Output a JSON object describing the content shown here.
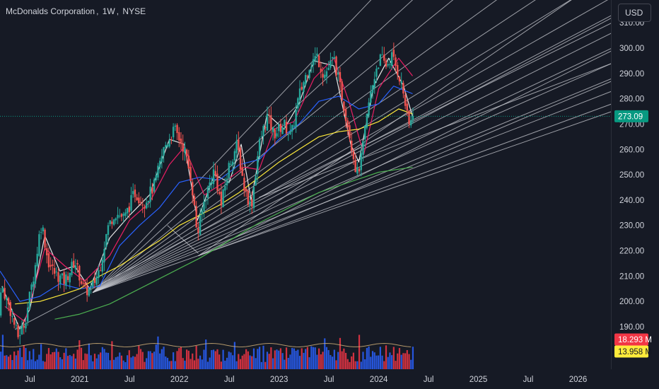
{
  "header": {
    "symbol": "McDonalds Corporation",
    "interval": "1W",
    "exchange": "NYSE",
    "currency_label": "USD"
  },
  "colors": {
    "background": "#161a25",
    "up": "#26a69a",
    "down": "#ef5350",
    "vol_up": "#2962ff",
    "vol_down": "#f23645",
    "axis_text": "#d1d4dc",
    "current_price_badge": "#089981",
    "volume_badge": "#f23645",
    "volume_ma_badge": "#ffeb3b",
    "ma_white": "#e6e6e6",
    "ma_red": "#e91e63",
    "ma_blue": "#2962ff",
    "ma_yellow": "#ffeb3b",
    "ma_green": "#4caf50"
  },
  "chart_data": {
    "type": "candlestick",
    "title": "McDonalds Corporation, 1W, NYSE",
    "y_scale": "linear",
    "ylim": [
      184,
      318
    ],
    "y_ticks": [
      "310.00",
      "300.00",
      "290.00",
      "280.00",
      "270.00",
      "260.00",
      "250.00",
      "240.00",
      "230.00",
      "220.00",
      "210.00",
      "200.00",
      "190.00"
    ],
    "y_tick_values": [
      310,
      300,
      290,
      280,
      270,
      260,
      250,
      240,
      230,
      220,
      210,
      200,
      190
    ],
    "x_ticks": [
      "Jul",
      "2021",
      "Jul",
      "2022",
      "Jul",
      "2023",
      "Jul",
      "2024",
      "Jul",
      "2025",
      "Jul",
      "2026"
    ],
    "x_tick_years": [
      2020.5,
      2021.0,
      2021.5,
      2022.0,
      2022.5,
      2023.0,
      2023.5,
      2024.0,
      2024.5,
      2025.0,
      2025.5,
      2026.0
    ],
    "x_range": [
      2020.2,
      2026.33
    ],
    "current_price": "273.09",
    "current_price_value": 273.09,
    "volume_label": "18.293 M",
    "volume_ma_label": "13.958 M",
    "price_path": [
      [
        2020.17,
        192
      ],
      [
        2020.22,
        206
      ],
      [
        2020.3,
        197
      ],
      [
        2020.38,
        186
      ],
      [
        2020.45,
        192
      ],
      [
        2020.55,
        213
      ],
      [
        2020.6,
        228
      ],
      [
        2020.62,
        231
      ],
      [
        2020.68,
        216
      ],
      [
        2020.75,
        211
      ],
      [
        2020.85,
        208
      ],
      [
        2020.95,
        216
      ],
      [
        2021.05,
        204
      ],
      [
        2021.12,
        205
      ],
      [
        2021.2,
        213
      ],
      [
        2021.28,
        229
      ],
      [
        2021.35,
        235
      ],
      [
        2021.45,
        233
      ],
      [
        2021.55,
        243
      ],
      [
        2021.65,
        239
      ],
      [
        2021.75,
        246
      ],
      [
        2021.85,
        261
      ],
      [
        2021.95,
        268
      ],
      [
        2022.05,
        260
      ],
      [
        2022.12,
        248
      ],
      [
        2022.18,
        226
      ],
      [
        2022.25,
        240
      ],
      [
        2022.35,
        252
      ],
      [
        2022.42,
        238
      ],
      [
        2022.5,
        254
      ],
      [
        2022.58,
        262
      ],
      [
        2022.65,
        245
      ],
      [
        2022.72,
        237
      ],
      [
        2022.8,
        262
      ],
      [
        2022.88,
        273
      ],
      [
        2022.95,
        266
      ],
      [
        2023.05,
        270
      ],
      [
        2023.12,
        265
      ],
      [
        2023.2,
        281
      ],
      [
        2023.3,
        293
      ],
      [
        2023.38,
        297
      ],
      [
        2023.45,
        289
      ],
      [
        2023.55,
        296
      ],
      [
        2023.62,
        283
      ],
      [
        2023.7,
        268
      ],
      [
        2023.78,
        250
      ],
      [
        2023.82,
        255
      ],
      [
        2023.9,
        278
      ],
      [
        2023.98,
        293
      ],
      [
        2024.02,
        296
      ],
      [
        2024.08,
        293
      ],
      [
        2024.13,
        297
      ],
      [
        2024.2,
        290
      ],
      [
        2024.25,
        282
      ],
      [
        2024.3,
        269
      ],
      [
        2024.34,
        273.09
      ]
    ],
    "series": [
      {
        "name": "",
        "color": "#e6e6e6",
        "points": [
          [
            2020.22,
            206
          ],
          [
            2020.4,
            189
          ],
          [
            2020.5,
            197
          ],
          [
            2020.65,
            226
          ],
          [
            2020.8,
            212
          ],
          [
            2020.95,
            214
          ],
          [
            2021.1,
            205
          ],
          [
            2021.3,
            225
          ],
          [
            2021.5,
            234
          ],
          [
            2021.7,
            242
          ],
          [
            2021.9,
            264
          ],
          [
            2022.05,
            262
          ],
          [
            2022.18,
            232
          ],
          [
            2022.35,
            250
          ],
          [
            2022.5,
            247
          ],
          [
            2022.62,
            262
          ],
          [
            2022.72,
            240
          ],
          [
            2022.88,
            274
          ],
          [
            2023.05,
            268
          ],
          [
            2023.2,
            278
          ],
          [
            2023.35,
            295
          ],
          [
            2023.55,
            293
          ],
          [
            2023.72,
            262
          ],
          [
            2023.8,
            255
          ],
          [
            2023.95,
            285
          ],
          [
            2024.1,
            296
          ],
          [
            2024.25,
            285
          ],
          [
            2024.34,
            273
          ]
        ]
      },
      {
        "name": "",
        "color": "#e91e63",
        "points": [
          [
            2020.25,
            198
          ],
          [
            2020.45,
            192
          ],
          [
            2020.65,
            221
          ],
          [
            2020.85,
            214
          ],
          [
            2021.05,
            208
          ],
          [
            2021.3,
            218
          ],
          [
            2021.5,
            232
          ],
          [
            2021.7,
            239
          ],
          [
            2021.9,
            254
          ],
          [
            2022.05,
            261
          ],
          [
            2022.25,
            242
          ],
          [
            2022.45,
            247
          ],
          [
            2022.65,
            253
          ],
          [
            2022.8,
            252
          ],
          [
            2022.95,
            268
          ],
          [
            2023.15,
            271
          ],
          [
            2023.35,
            288
          ],
          [
            2023.55,
            296
          ],
          [
            2023.7,
            279
          ],
          [
            2023.85,
            258
          ],
          [
            2024.0,
            284
          ],
          [
            2024.2,
            296
          ],
          [
            2024.34,
            289
          ]
        ]
      },
      {
        "name": "",
        "color": "#2962ff",
        "points": [
          [
            2020.2,
            212
          ],
          [
            2020.4,
            200
          ],
          [
            2020.6,
            202
          ],
          [
            2020.8,
            207
          ],
          [
            2021.0,
            205
          ],
          [
            2021.2,
            206
          ],
          [
            2021.4,
            222
          ],
          [
            2021.6,
            230
          ],
          [
            2021.8,
            237
          ],
          [
            2022.0,
            247
          ],
          [
            2022.2,
            249
          ],
          [
            2022.4,
            248
          ],
          [
            2022.6,
            254
          ],
          [
            2022.8,
            256
          ],
          [
            2023.0,
            264
          ],
          [
            2023.2,
            270
          ],
          [
            2023.4,
            279
          ],
          [
            2023.6,
            281
          ],
          [
            2023.8,
            276
          ],
          [
            2024.0,
            278
          ],
          [
            2024.15,
            285
          ],
          [
            2024.34,
            282
          ]
        ]
      },
      {
        "name": "",
        "color": "#ffeb3b",
        "points": [
          [
            2020.35,
            199
          ],
          [
            2020.6,
            200
          ],
          [
            2020.85,
            203
          ],
          [
            2021.0,
            205
          ],
          [
            2021.2,
            210
          ],
          [
            2021.4,
            214
          ],
          [
            2021.6,
            219
          ],
          [
            2021.8,
            224
          ],
          [
            2022.0,
            230
          ],
          [
            2022.2,
            234
          ],
          [
            2022.4,
            238
          ],
          [
            2022.6,
            243
          ],
          [
            2022.8,
            249
          ],
          [
            2023.0,
            255
          ],
          [
            2023.2,
            260
          ],
          [
            2023.4,
            265
          ],
          [
            2023.6,
            267
          ],
          [
            2023.8,
            268
          ],
          [
            2024.0,
            271
          ],
          [
            2024.2,
            276
          ],
          [
            2024.34,
            274
          ]
        ]
      },
      {
        "name": "",
        "color": "#4caf50",
        "points": [
          [
            2020.75,
            193
          ],
          [
            2021.0,
            195
          ],
          [
            2021.3,
            199
          ],
          [
            2021.6,
            205
          ],
          [
            2021.9,
            211
          ],
          [
            2022.2,
            217
          ],
          [
            2022.5,
            224
          ],
          [
            2022.8,
            231
          ],
          [
            2023.1,
            237
          ],
          [
            2023.4,
            243
          ],
          [
            2023.7,
            247
          ],
          [
            2024.0,
            251
          ],
          [
            2024.34,
            253
          ]
        ]
      }
    ],
    "fan_lines": [
      {
        "from": [
          2021.13,
          203.5
        ],
        "to": [
          2026.34,
          419
        ],
        "color": "#c9cbd1"
      },
      {
        "from": [
          2021.13,
          203.5
        ],
        "to": [
          2026.34,
          391
        ],
        "color": "#c9cbd1"
      },
      {
        "from": [
          2021.13,
          203.5
        ],
        "to": [
          2026.34,
          370
        ],
        "color": "#c9cbd1"
      },
      {
        "from": [
          2021.13,
          203.5
        ],
        "to": [
          2026.34,
          352
        ],
        "color": "#c9cbd1"
      },
      {
        "from": [
          2021.13,
          203.5
        ],
        "to": [
          2026.34,
          339
        ],
        "color": "#c9cbd1"
      },
      {
        "from": [
          2021.13,
          203.5
        ],
        "to": [
          2026.34,
          329
        ],
        "color": "#c9cbd1"
      },
      {
        "from": [
          2021.13,
          203.5
        ],
        "to": [
          2026.34,
          320
        ],
        "color": "#c9cbd1"
      },
      {
        "from": [
          2021.13,
          203.5
        ],
        "to": [
          2026.34,
          312
        ],
        "color": "#c9cbd1"
      },
      {
        "from": [
          2021.13,
          203.5
        ],
        "to": [
          2026.34,
          306
        ],
        "color": "#c9cbd1"
      },
      {
        "from": [
          2021.13,
          203.5
        ],
        "to": [
          2026.34,
          300
        ],
        "color": "#c9cbd1"
      },
      {
        "from": [
          2021.13,
          203.5
        ],
        "to": [
          2026.34,
          294
        ],
        "color": "#c9cbd1"
      },
      {
        "from": [
          2021.13,
          203.5
        ],
        "to": [
          2026.34,
          288
        ],
        "color": "#c9cbd1"
      },
      {
        "from": [
          2021.13,
          203.5
        ],
        "to": [
          2026.34,
          283
        ],
        "color": "#c9cbd1"
      },
      {
        "from": [
          2021.13,
          203.5
        ],
        "to": [
          2026.34,
          275
        ],
        "color": "#c9cbd1"
      },
      {
        "from": [
          2020.35,
          189
        ],
        "to": [
          2026.34,
          313
        ],
        "color": "#c9cbd1"
      },
      {
        "from": [
          2022.19,
          218
        ],
        "to": [
          2026.34,
          330
        ],
        "color": "#c9cbd1"
      },
      {
        "from": [
          2022.19,
          218
        ],
        "to": [
          2026.34,
          299
        ],
        "color": "#c9cbd1"
      },
      {
        "from": [
          2022.19,
          218
        ],
        "to": [
          2026.34,
          287
        ],
        "color": "#c9cbd1"
      },
      {
        "from": [
          2022.19,
          218
        ],
        "to": [
          2026.34,
          278
        ],
        "color": "#c9cbd1"
      },
      {
        "from": [
          2021.88,
          230
        ],
        "to": [
          2022.19,
          219
        ],
        "color": "#c9cbd1"
      },
      {
        "from": [
          2022.8,
          241
        ],
        "to": [
          2026.34,
          310
        ],
        "color": "#c9cbd1"
      },
      {
        "from": [
          2022.8,
          241
        ],
        "to": [
          2026.34,
          294
        ],
        "color": "#c9cbd1"
      }
    ]
  }
}
